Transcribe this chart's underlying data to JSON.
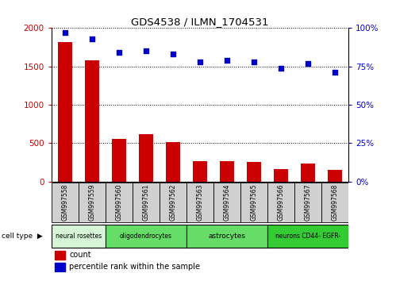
{
  "title": "GDS4538 / ILMN_1704531",
  "samples": [
    "GSM997558",
    "GSM997559",
    "GSM997560",
    "GSM997561",
    "GSM997562",
    "GSM997563",
    "GSM997564",
    "GSM997565",
    "GSM997566",
    "GSM997567",
    "GSM997568"
  ],
  "counts": [
    1820,
    1580,
    560,
    620,
    510,
    265,
    270,
    255,
    165,
    240,
    150
  ],
  "percentiles": [
    97,
    93,
    84,
    85,
    83,
    78,
    79,
    78,
    74,
    77,
    71
  ],
  "ylim_left": [
    0,
    2000
  ],
  "ylim_right": [
    0,
    100
  ],
  "yticks_left": [
    0,
    500,
    1000,
    1500,
    2000
  ],
  "yticks_right": [
    0,
    25,
    50,
    75,
    100
  ],
  "cell_types": [
    {
      "label": "neural rosettes",
      "start": 0,
      "end": 2,
      "color": "#d6f5d6"
    },
    {
      "label": "oligodendrocytes",
      "start": 2,
      "end": 5,
      "color": "#66dd66"
    },
    {
      "label": "astrocytes",
      "start": 5,
      "end": 8,
      "color": "#66dd66"
    },
    {
      "label": "neurons CD44- EGFR-",
      "start": 8,
      "end": 11,
      "color": "#33cc33"
    }
  ],
  "bar_color": "#cc0000",
  "dot_color": "#0000cc",
  "bg_color": "#ffffff",
  "sample_box_color": "#d0d0d0",
  "tick_label_color_left": "#cc0000",
  "tick_label_color_right": "#0000cc",
  "legend_count_color": "#cc0000",
  "legend_pct_color": "#0000cc"
}
